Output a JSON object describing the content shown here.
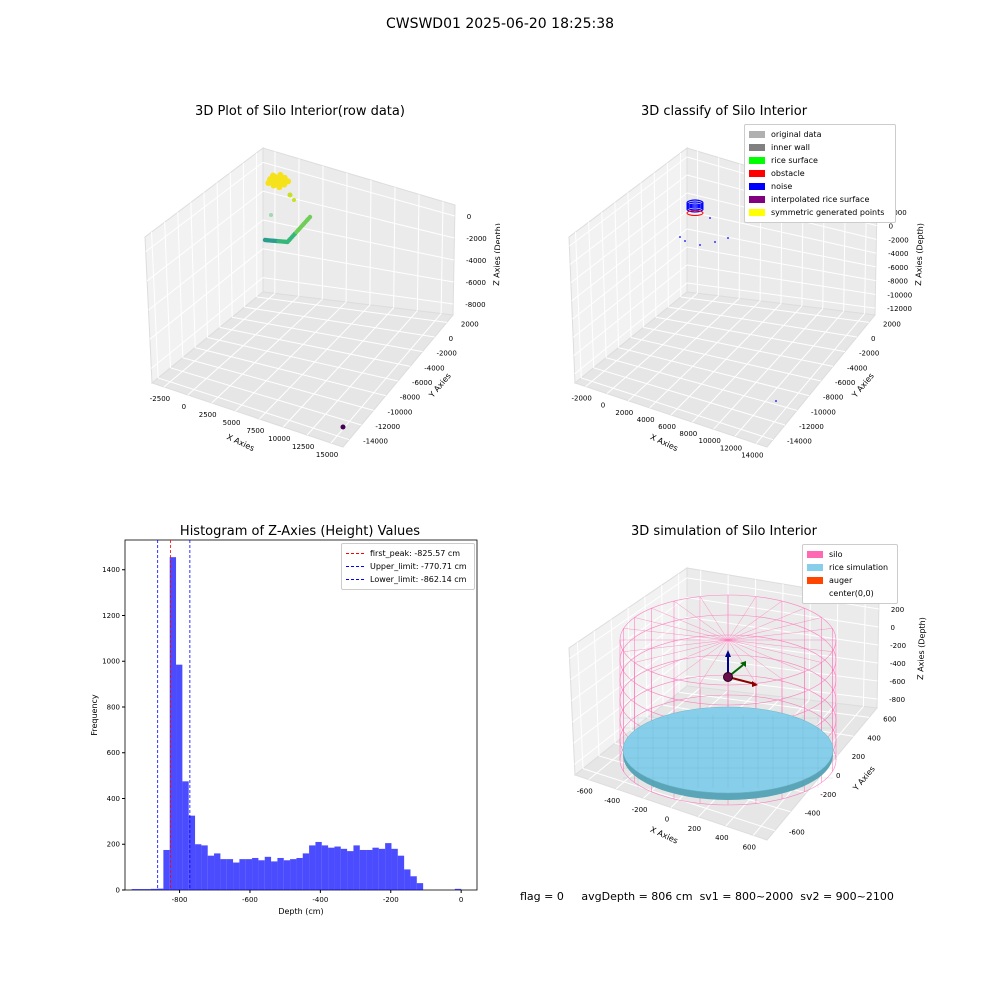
{
  "suptitle": "CWSWD01 2025-06-20 18:25:38",
  "panels": {
    "raw": {
      "title": "3D Plot of Silo Interior(row data)",
      "xlabel": "X Axies",
      "ylabel": "Y Axies",
      "zlabel": "Z Axies (Depth)",
      "xticks": [
        "-2500",
        "0",
        "2500",
        "5000",
        "7500",
        "10000",
        "12500",
        "15000"
      ],
      "yticks": [
        "2000",
        "0",
        "-2000",
        "-4000",
        "-6000",
        "-8000",
        "-10000",
        "-12000",
        "-14000"
      ],
      "zticks": [
        "0",
        "-2000",
        "-4000",
        "-6000",
        "-8000"
      ]
    },
    "classify": {
      "title": "3D classify of Silo Interior",
      "xlabel": "X Axies",
      "ylabel": "Y Axies",
      "zlabel": "Z Axies (Depth)",
      "xticks": [
        "-2000",
        "0",
        "2000",
        "4000",
        "6000",
        "8000",
        "10000",
        "12000",
        "14000"
      ],
      "yticks": [
        "2000",
        "0",
        "-2000",
        "-4000",
        "-6000",
        "-8000",
        "-10000",
        "-12000",
        "-14000"
      ],
      "zticks": [
        "2000",
        "0",
        "-2000",
        "-4000",
        "-6000",
        "-8000",
        "-10000",
        "-12000"
      ],
      "legend": [
        {
          "label": "original data",
          "color": "#b0b0b0"
        },
        {
          "label": "inner wall",
          "color": "#808080"
        },
        {
          "label": "rice surface",
          "color": "#00ff00"
        },
        {
          "label": "obstacle",
          "color": "#ff0000"
        },
        {
          "label": "noise",
          "color": "#0000ff"
        },
        {
          "label": "interpolated rice surface",
          "color": "#800080"
        },
        {
          "label": "symmetric generated points",
          "color": "#ffff00"
        }
      ]
    },
    "simulation": {
      "title": "3D simulation of Silo Interior",
      "xlabel": "X Axies",
      "ylabel": "Y Axies",
      "zlabel": "Z Axies (Depth)",
      "xticks": [
        "-600",
        "-400",
        "-200",
        "0",
        "200",
        "400",
        "600"
      ],
      "yticks": [
        "600",
        "400",
        "200",
        "0",
        "-200",
        "-400",
        "-600"
      ],
      "zticks": [
        "200",
        "0",
        "-200",
        "-400",
        "-600",
        "-800"
      ],
      "legend": [
        {
          "label": "silo",
          "color": "#ff69b4"
        },
        {
          "label": "rice simulation",
          "color": "#87ceeb"
        },
        {
          "label": "auger",
          "color": "#ff4500"
        },
        {
          "label": "center(0,0)",
          "color": "#ffffff"
        }
      ]
    }
  },
  "chart_data": {
    "type": "bar",
    "title": "Histogram of Z-Axies (Height) Values",
    "xlabel": "Depth (cm)",
    "ylabel": "Frequency",
    "xlim": [
      -955,
      45
    ],
    "ylim": [
      0,
      1530
    ],
    "xticks": [
      -800,
      -600,
      -400,
      -200,
      0
    ],
    "yticks": [
      0,
      200,
      400,
      600,
      800,
      1000,
      1200,
      1400
    ],
    "bin_width": 18,
    "bins": [
      {
        "x": -936,
        "v": 4
      },
      {
        "x": -918,
        "v": 4
      },
      {
        "x": -900,
        "v": 4
      },
      {
        "x": -882,
        "v": 5
      },
      {
        "x": -864,
        "v": 6
      },
      {
        "x": -846,
        "v": 175
      },
      {
        "x": -828,
        "v": 1455
      },
      {
        "x": -810,
        "v": 985
      },
      {
        "x": -792,
        "v": 475
      },
      {
        "x": -774,
        "v": 325
      },
      {
        "x": -756,
        "v": 200
      },
      {
        "x": -738,
        "v": 195
      },
      {
        "x": -720,
        "v": 150
      },
      {
        "x": -702,
        "v": 160
      },
      {
        "x": -684,
        "v": 135
      },
      {
        "x": -666,
        "v": 135
      },
      {
        "x": -648,
        "v": 120
      },
      {
        "x": -630,
        "v": 135
      },
      {
        "x": -612,
        "v": 135
      },
      {
        "x": -594,
        "v": 140
      },
      {
        "x": -576,
        "v": 130
      },
      {
        "x": -558,
        "v": 145
      },
      {
        "x": -540,
        "v": 125
      },
      {
        "x": -522,
        "v": 140
      },
      {
        "x": -504,
        "v": 130
      },
      {
        "x": -486,
        "v": 135
      },
      {
        "x": -468,
        "v": 140
      },
      {
        "x": -450,
        "v": 160
      },
      {
        "x": -432,
        "v": 195
      },
      {
        "x": -414,
        "v": 210
      },
      {
        "x": -396,
        "v": 195
      },
      {
        "x": -378,
        "v": 185
      },
      {
        "x": -360,
        "v": 190
      },
      {
        "x": -342,
        "v": 180
      },
      {
        "x": -324,
        "v": 170
      },
      {
        "x": -306,
        "v": 195
      },
      {
        "x": -288,
        "v": 175
      },
      {
        "x": -270,
        "v": 175
      },
      {
        "x": -252,
        "v": 185
      },
      {
        "x": -234,
        "v": 180
      },
      {
        "x": -216,
        "v": 205
      },
      {
        "x": -198,
        "v": 180
      },
      {
        "x": -180,
        "v": 150
      },
      {
        "x": -162,
        "v": 90
      },
      {
        "x": -144,
        "v": 60
      },
      {
        "x": -126,
        "v": 30
      },
      {
        "x": -108,
        "v": 0
      },
      {
        "x": -90,
        "v": 0
      },
      {
        "x": -72,
        "v": 0
      },
      {
        "x": -54,
        "v": 0
      },
      {
        "x": -36,
        "v": 0
      },
      {
        "x": -18,
        "v": 5
      }
    ],
    "bar_color": "#0000ff",
    "lines": [
      {
        "label": "first_peak: -825.57 cm",
        "x": -825.57,
        "color": "#ff0000"
      },
      {
        "label": "Upper_limit: -770.71 cm",
        "x": -770.71,
        "color": "#0000ff"
      },
      {
        "label": "Lower_limit: -862.14 cm",
        "x": -862.14,
        "color": "#0000ff"
      }
    ],
    "legend_position": "top-right"
  },
  "footer": {
    "flag": "flag = 0",
    "avg": "avgDepth = 806 cm",
    "sv1": "sv1 = 800~2000",
    "sv2": "sv2 = 900~2100"
  }
}
